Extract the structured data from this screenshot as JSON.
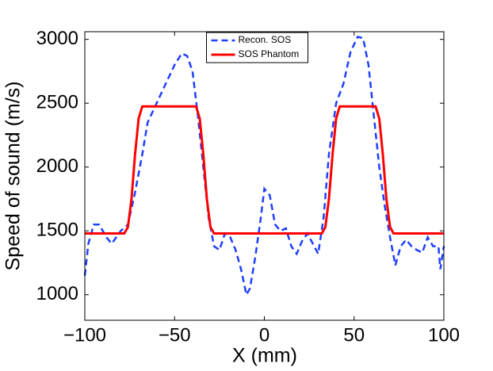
{
  "chart_data": {
    "type": "line",
    "xlabel": "X (mm)",
    "ylabel": "Speed of sound (m/s)",
    "xlim": [
      -100,
      100
    ],
    "ylim": [
      800,
      3060
    ],
    "xticks": [
      {
        "value": -100,
        "label": "−100"
      },
      {
        "value": -50,
        "label": "−50"
      },
      0,
      50,
      100
    ],
    "yticks": [
      1000,
      1500,
      2000,
      2500,
      3000
    ],
    "legend": "upper center",
    "series": [
      {
        "name": "Recon. SOS",
        "color": "#1f3fff",
        "dash": true,
        "x": [
          -100,
          -98,
          -95,
          -92,
          -88,
          -85,
          -80,
          -76,
          -72,
          -68,
          -65,
          -60,
          -55,
          -50,
          -46,
          -43,
          -40,
          -37,
          -34,
          -31,
          -28,
          -25,
          -22,
          -19,
          -16,
          -13,
          -10,
          -8,
          -5,
          -2,
          0,
          3,
          6,
          9,
          12,
          15,
          18,
          21,
          24,
          27,
          30,
          33,
          36,
          40,
          44,
          48,
          52,
          55,
          58,
          61,
          64,
          67,
          70,
          73,
          76,
          79,
          82,
          85,
          88,
          91,
          94,
          97,
          98,
          100
        ],
        "values": [
          1150,
          1400,
          1550,
          1550,
          1450,
          1400,
          1500,
          1550,
          1800,
          2100,
          2350,
          2500,
          2650,
          2800,
          2890,
          2870,
          2750,
          2400,
          2000,
          1600,
          1380,
          1350,
          1480,
          1450,
          1350,
          1200,
          1000,
          1050,
          1300,
          1600,
          1830,
          1780,
          1550,
          1500,
          1520,
          1380,
          1320,
          1420,
          1480,
          1400,
          1320,
          1600,
          2100,
          2500,
          2650,
          2900,
          3020,
          3010,
          2800,
          2400,
          2000,
          1700,
          1450,
          1230,
          1380,
          1430,
          1380,
          1350,
          1330,
          1450,
          1380,
          1380,
          1200,
          1380
        ]
      },
      {
        "name": "SOS Phantom",
        "color": "#ff0000",
        "dash": false,
        "x": [
          -100,
          -78,
          -76,
          -74,
          -72,
          -70,
          -68,
          -38,
          -36,
          -34,
          -32,
          -30,
          -28,
          32,
          34,
          36,
          38,
          40,
          42,
          62,
          64,
          66,
          68,
          70,
          72,
          100
        ],
        "values": [
          1480,
          1480,
          1530,
          1750,
          2100,
          2380,
          2475,
          2475,
          2380,
          2100,
          1750,
          1530,
          1480,
          1480,
          1530,
          1750,
          2100,
          2380,
          2475,
          2475,
          2380,
          2100,
          1750,
          1530,
          1480,
          1480
        ]
      }
    ]
  }
}
